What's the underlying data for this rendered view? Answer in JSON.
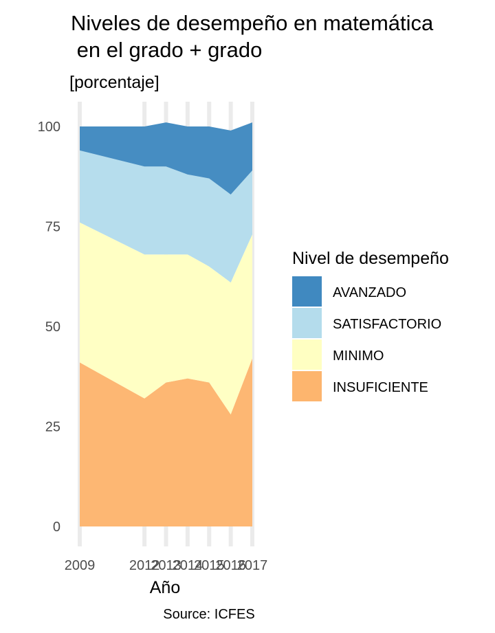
{
  "chart_data": {
    "type": "area",
    "title_line1": "Niveles de desempeño en matemática",
    "title_line2": " en el grado + grado",
    "subtitle": "[porcentaje]",
    "xlabel": "Año",
    "ylabel": "",
    "caption": "Source: ICFES",
    "x": [
      2009,
      2012,
      2013,
      2014,
      2015,
      2016,
      2017
    ],
    "x_tick_labels": [
      "2009",
      "2012",
      "2013",
      "2014",
      "2015",
      "2016",
      "2017"
    ],
    "y_ticks": [
      0,
      25,
      50,
      75,
      100
    ],
    "ylim": [
      0,
      100
    ],
    "stacked": true,
    "grid": true,
    "legend_title": "Nivel de desempeño",
    "legend_position": "right",
    "series": [
      {
        "name": "INSUFICIENTE",
        "color": "#fdb56e",
        "values": [
          41,
          32,
          36,
          37,
          36,
          28,
          42
        ]
      },
      {
        "name": "MINIMO",
        "color": "#ffffc2",
        "values": [
          35,
          36,
          32,
          31,
          29,
          33,
          31
        ]
      },
      {
        "name": "SATISFACTORIO",
        "color": "#b4dcec",
        "values": [
          18,
          22,
          22,
          20,
          22,
          22,
          16
        ]
      },
      {
        "name": "AVANZADO",
        "color": "#4089c0",
        "values": [
          6,
          10,
          11,
          12,
          13,
          16,
          12
        ]
      }
    ]
  }
}
